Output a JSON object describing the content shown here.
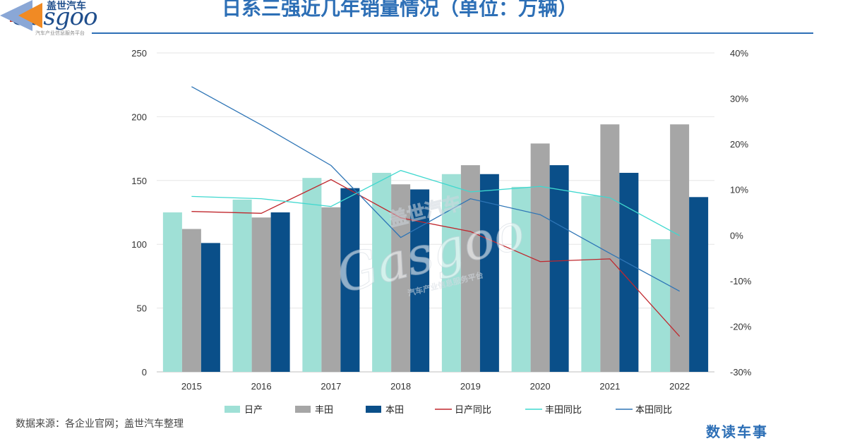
{
  "header": {
    "title": "日系三强近几年销量情况（单位：万辆）",
    "logo_cn": "盖世汽车",
    "logo_en": "Gasgoo",
    "logo_sub": "汽车产业信息服务平台"
  },
  "footer": {
    "source": "数据来源：各企业官网；盖世汽车整理",
    "watermark": "数读车事"
  },
  "colors": {
    "nissan_bar": "#9fe0d6",
    "toyota_bar": "#a6a6a6",
    "honda_bar": "#0a4f89",
    "nissan_line": "#c0272d",
    "toyota_line": "#3fd8cf",
    "honda_line": "#2e75b6",
    "title": "#2d6fb6"
  },
  "chart_data": {
    "type": "bar",
    "categories": [
      "2015",
      "2016",
      "2017",
      "2018",
      "2019",
      "2020",
      "2021",
      "2022"
    ],
    "ylim": [
      0,
      250
    ],
    "yticks": [
      "0",
      "50",
      "100",
      "150",
      "200",
      "250"
    ],
    "y2lim": [
      -30,
      40
    ],
    "y2ticks": [
      "-30%",
      "-20%",
      "-10%",
      "0%",
      "10%",
      "20%",
      "30%",
      "40%"
    ],
    "series": [
      {
        "name": "日产",
        "kind": "bar",
        "axis": "left",
        "values": [
          125,
          135,
          152,
          156,
          155,
          145,
          138,
          104
        ]
      },
      {
        "name": "丰田",
        "kind": "bar",
        "axis": "left",
        "values": [
          112,
          121,
          129,
          147,
          162,
          179,
          194,
          194
        ]
      },
      {
        "name": "本田",
        "kind": "bar",
        "axis": "left",
        "values": [
          101,
          125,
          144,
          143,
          155,
          162,
          156,
          137
        ]
      },
      {
        "name": "日产同比",
        "kind": "line",
        "axis": "right",
        "values": [
          5.2,
          4.8,
          12.2,
          3.8,
          0.8,
          -5.8,
          -5.2,
          -22.2
        ]
      },
      {
        "name": "丰田同比",
        "kind": "line",
        "axis": "right",
        "values": [
          8.5,
          8.0,
          6.3,
          14.2,
          9.5,
          10.7,
          8.2,
          -0.1
        ]
      },
      {
        "name": "本田同比",
        "kind": "line",
        "axis": "right",
        "values": [
          32.6,
          24.2,
          15.3,
          -0.5,
          8.0,
          4.5,
          -4.0,
          -12.3
        ]
      }
    ],
    "legend_position": "bottom"
  }
}
